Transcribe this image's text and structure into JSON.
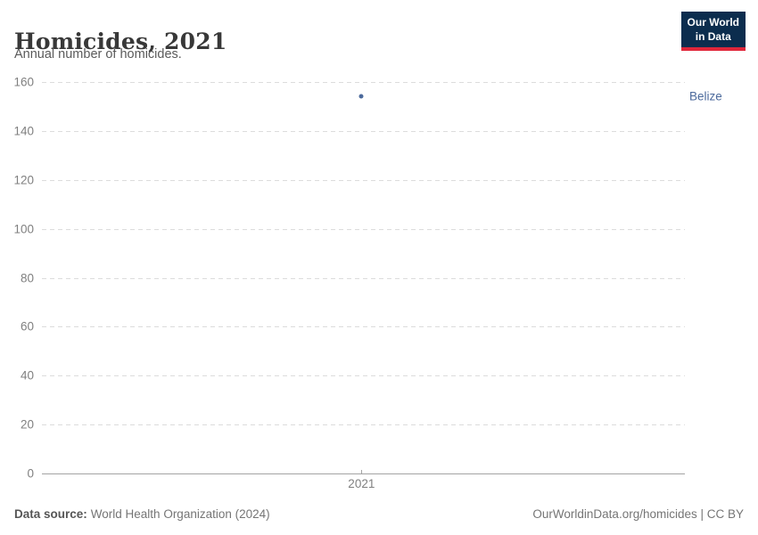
{
  "header": {
    "title": "Homicides, 2021",
    "subtitle": "Annual number of homicides."
  },
  "logo": {
    "line1": "Our World",
    "line2": "in Data",
    "bg_color": "#0c2d4e",
    "accent_color": "#e0263a"
  },
  "footer": {
    "source_label": "Data source:",
    "source_value": "World Health Organization (2024)",
    "rights": "OurWorldinData.org/homicides | CC BY"
  },
  "chart_data": {
    "type": "scatter",
    "title": "Homicides, 2021",
    "subtitle": "Annual number of homicides.",
    "x": [
      2021
    ],
    "xtick_labels": [
      "2021"
    ],
    "series": [
      {
        "name": "Belize",
        "values": [
          154
        ],
        "color": "#4c6a9c"
      }
    ],
    "xlabel": "",
    "ylabel": "",
    "ylim": [
      0,
      160
    ],
    "yticks": [
      0,
      20,
      40,
      60,
      80,
      100,
      120,
      140,
      160
    ],
    "grid": "dashed horizontal",
    "legend_position": "right-of-plot entity label",
    "gridline_color": "#dcdcdc",
    "axis_color": "#a3a3a3",
    "tick_label_color": "#808080",
    "x_fraction": 0.497
  }
}
